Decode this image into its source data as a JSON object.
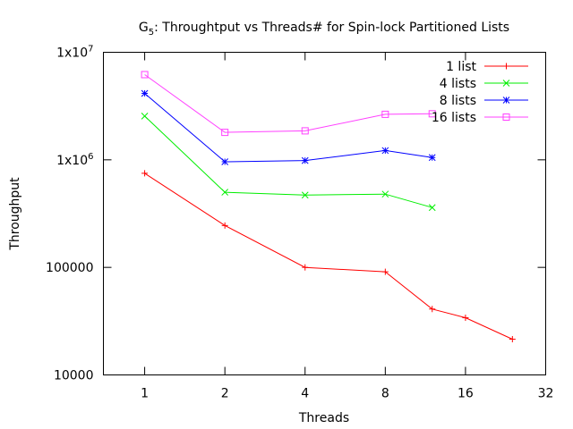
{
  "chart_data": {
    "type": "line",
    "title": {
      "prefix": "G",
      "subscript": "5",
      "rest": ": Throughtput vs Threads# for Spin-lock Partitioned Lists"
    },
    "xlabel": "Threads",
    "ylabel": "Throughput",
    "x_scale": "log2",
    "y_scale": "log10",
    "xlim": [
      0.7,
      32
    ],
    "ylim": [
      10000,
      10000000
    ],
    "x_ticks": [
      {
        "value": 1,
        "label": "1"
      },
      {
        "value": 2,
        "label": "2"
      },
      {
        "value": 4,
        "label": "4"
      },
      {
        "value": 8,
        "label": "8"
      },
      {
        "value": 16,
        "label": "16"
      },
      {
        "value": 32,
        "label": "32"
      }
    ],
    "y_ticks": [
      {
        "value": 10000,
        "label": "10000"
      },
      {
        "value": 100000,
        "label": "100000"
      },
      {
        "value": 1000000,
        "label_base": "1x10",
        "label_exp": "6"
      },
      {
        "value": 10000000,
        "label_base": "1x10",
        "label_exp": "7"
      }
    ],
    "grid": false,
    "legend_position": "top-right",
    "series": [
      {
        "name": "1 list",
        "color": "#ff0000",
        "marker": "plus",
        "points": [
          [
            1,
            750000
          ],
          [
            2,
            245000
          ],
          [
            4,
            100000
          ],
          [
            8,
            91000
          ],
          [
            12,
            41000
          ],
          [
            16,
            34000
          ],
          [
            24,
            21500
          ]
        ]
      },
      {
        "name": "4 lists",
        "color": "#00ee00",
        "marker": "cross",
        "points": [
          [
            1,
            2550000
          ],
          [
            2,
            500000
          ],
          [
            4,
            470000
          ],
          [
            8,
            480000
          ],
          [
            12,
            360000
          ]
        ]
      },
      {
        "name": "8 lists",
        "color": "#0000ff",
        "marker": "star",
        "points": [
          [
            1,
            4150000
          ],
          [
            2,
            960000
          ],
          [
            4,
            985000
          ],
          [
            8,
            1220000
          ],
          [
            12,
            1050000
          ]
        ]
      },
      {
        "name": "16 lists",
        "color": "#ff40ff",
        "marker": "square",
        "points": [
          [
            1,
            6200000
          ],
          [
            2,
            1800000
          ],
          [
            4,
            1860000
          ],
          [
            8,
            2650000
          ],
          [
            12,
            2680000
          ]
        ]
      }
    ]
  }
}
